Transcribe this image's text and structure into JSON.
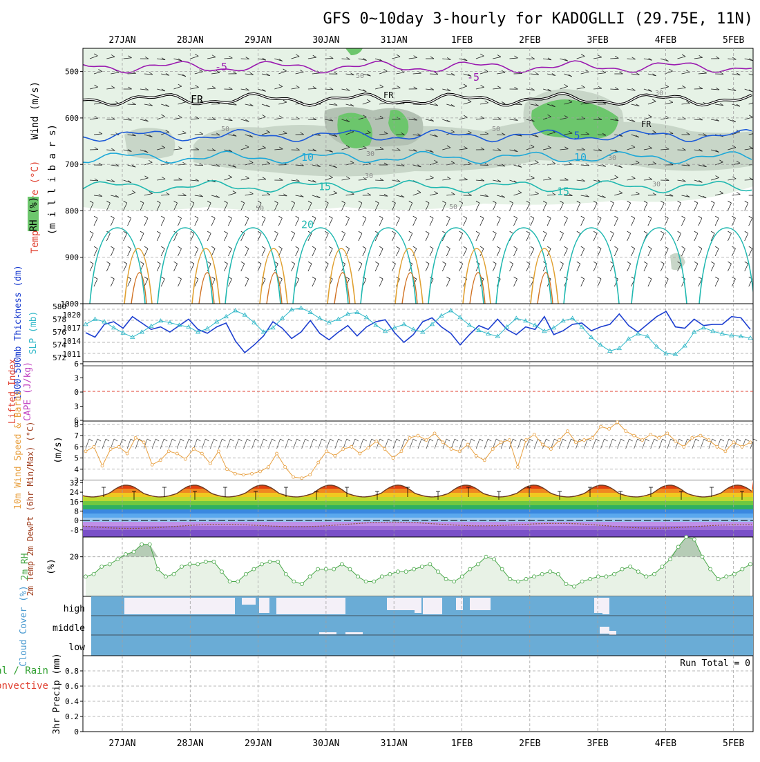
{
  "title": "GFS 0~10day 3-hourly for KADOGLLI (29.75E, 11N)",
  "dates": [
    "27JAN",
    "28JAN",
    "29JAN",
    "30JAN",
    "31JAN",
    "1FEB",
    "2FEB",
    "3FEB",
    "4FEB",
    "5FEB"
  ],
  "colors": {
    "rh_light": "#e6f2e6",
    "rh_mid": "#c8d6c8",
    "rh_dark": "#b4c2b4",
    "rh_green": "#6cc66c",
    "temp_purple": "#9a1ab0",
    "temp_blue": "#1c5ad8",
    "temp_cyan": "#1ca8d8",
    "temp_teal": "#20b8b0",
    "temp_orange": "#e0a030",
    "thickness": "#1c3ed0",
    "slp": "#30b8c8",
    "wind10m": "#e8a040",
    "rh2m": "#4aa84a",
    "cloud": "#6aacd6",
    "grid": "#a0a0a0"
  },
  "chart_data": [
    {
      "id": "panel_upper_air",
      "type": "heatmap",
      "ylabel_top": "Wind (m/s)",
      "ylabel_temp": "Temperature (°C)",
      "ylabel_units": "(m i l l i b a r s)",
      "legend_label": "RH (%)",
      "y_ticks": [
        500,
        600,
        700,
        800,
        900,
        1000
      ],
      "ylim": [
        450,
        1000
      ],
      "isotherms": [
        {
          "label": "-5",
          "value": -5,
          "level": 490
        },
        {
          "label": "FR",
          "value": 0,
          "level": 560
        },
        {
          "label": "5",
          "value": 5,
          "level": 638
        },
        {
          "label": "10",
          "value": 10,
          "level": 685
        },
        {
          "label": "15",
          "value": 15,
          "level": 748
        },
        {
          "label": "20",
          "value": 20,
          "level": 830
        }
      ],
      "rh_labels": [
        "50",
        "50",
        "50",
        "30",
        "30",
        "30",
        "50",
        "50",
        "30",
        "30"
      ]
    },
    {
      "id": "panel_thickness_slp",
      "type": "line",
      "ylabel_left": "1000-500mb Thickness (dm)",
      "ylabel_right": "SLP (mb)",
      "left_ticks": [
        "580",
        "578",
        "576",
        "574",
        "572"
      ],
      "right_ticks": [
        "1020",
        "1017",
        "1014",
        "1011"
      ],
      "left_ylim": [
        571,
        580
      ],
      "right_ylim": [
        1008.5,
        1022
      ],
      "thickness": [
        575.5,
        574.8,
        576.8,
        577.2,
        576.2,
        578.0,
        577.0,
        576.0,
        576.4,
        575.6,
        576.6,
        577.6,
        576.0,
        575.4,
        576.4,
        577.0,
        574.2,
        572.4,
        573.6,
        575.0,
        577.2,
        576.2,
        574.6,
        575.6,
        577.4,
        575.4,
        574.4,
        575.6,
        576.6,
        575.0,
        576.4,
        577.2,
        577.5,
        575.5,
        574.0,
        575.2,
        577.2,
        577.8,
        576.4,
        575.4,
        573.6,
        575.2,
        576.6,
        576.0,
        577.6,
        576.0,
        575.2,
        576.4,
        576.0,
        578.0,
        575.2,
        575.8,
        576.8,
        577.0,
        575.8,
        576.4,
        576.8,
        578.4,
        576.6,
        575.6,
        576.8,
        578.0,
        578.8,
        576.4,
        576.2,
        577.6,
        576.6,
        576.8,
        576.8,
        578.0,
        577.8,
        576.0
      ],
      "slp": [
        1017.2,
        1018.4,
        1017.8,
        1016.4,
        1015.2,
        1014.2,
        1015.4,
        1016.8,
        1018.0,
        1017.6,
        1017.0,
        1016.6,
        1015.4,
        1016.2,
        1017.8,
        1019.0,
        1020.4,
        1019.4,
        1017.6,
        1015.4,
        1016.4,
        1018.6,
        1020.6,
        1021.0,
        1020.0,
        1018.6,
        1017.6,
        1018.4,
        1019.6,
        1020.0,
        1018.8,
        1017.0,
        1015.6,
        1016.4,
        1017.2,
        1016.0,
        1015.4,
        1017.2,
        1019.2,
        1020.4,
        1018.8,
        1017.0,
        1015.8,
        1015.0,
        1014.4,
        1016.6,
        1018.6,
        1018.0,
        1017.0,
        1015.6,
        1016.4,
        1018.0,
        1018.6,
        1016.6,
        1014.2,
        1012.4,
        1011.0,
        1011.6,
        1013.8,
        1015.0,
        1014.4,
        1012.0,
        1010.4,
        1010.2,
        1012.2,
        1015.4,
        1016.4,
        1015.6,
        1015.0,
        1014.6,
        1014.4,
        1014.0
      ]
    },
    {
      "id": "panel_cape",
      "type": "line",
      "ylabel_left": "Lifted Index",
      "ylabel_right": "CAPE (J/kg)",
      "ticks": [
        "6",
        "3",
        "0",
        "3",
        "6"
      ]
    },
    {
      "id": "panel_wind10m",
      "type": "line",
      "ylabel": "10m Wind Speed & Barbs",
      "units": "(m/s)",
      "ticks": [
        "8",
        "7",
        "6",
        "5",
        "4",
        "3"
      ],
      "ylim": [
        3,
        8.3
      ],
      "values": [
        5.6,
        6.0,
        4.3,
        5.8,
        6.0,
        5.4,
        6.8,
        6.4,
        4.4,
        4.8,
        5.6,
        5.4,
        4.9,
        5.8,
        5.4,
        4.5,
        5.6,
        4.0,
        3.6,
        3.5,
        3.6,
        3.8,
        4.2,
        5.4,
        4.2,
        3.3,
        3.2,
        3.5,
        4.6,
        5.6,
        5.2,
        5.8,
        6.0,
        5.4,
        5.9,
        6.5,
        5.8,
        5.0,
        5.6,
        6.8,
        7.0,
        6.6,
        7.2,
        6.4,
        5.8,
        5.6,
        6.2,
        5.2,
        4.8,
        5.8,
        6.4,
        6.6,
        4.2,
        6.6,
        7.1,
        6.2,
        5.8,
        6.6,
        7.4,
        6.4,
        6.6,
        6.8,
        7.8,
        7.6,
        8.2,
        7.4,
        7.0,
        6.6,
        7.1,
        6.8,
        7.2,
        6.5,
        6.0,
        6.8,
        7.0,
        6.6,
        6.0,
        5.6,
        6.4,
        6.0,
        6.4
      ]
    },
    {
      "id": "panel_temp2m",
      "type": "area",
      "ylabel": "2m Temp 2m DewPt (6hr Min/Max) (°C)",
      "ticks": [
        "32",
        "24",
        "16",
        "8",
        "0",
        "-8"
      ],
      "ylim": [
        -14,
        34
      ]
    },
    {
      "id": "panel_rh2m",
      "type": "area",
      "ylabel": "2m RH",
      "units": "(%)",
      "ticks": [
        "20"
      ],
      "ylim": [
        4,
        28
      ],
      "values": [
        12,
        13,
        16,
        17,
        19,
        21,
        22,
        25,
        25,
        15,
        12,
        13,
        16,
        17,
        17,
        18,
        18,
        14,
        10,
        10,
        13,
        15,
        17,
        18,
        18,
        13,
        10,
        9,
        12,
        15,
        15,
        15,
        17,
        15,
        12,
        10,
        10,
        12,
        13,
        14,
        14,
        15,
        16,
        17,
        14,
        11,
        10,
        12,
        15,
        17,
        20,
        19,
        15,
        11,
        10,
        11,
        12,
        13,
        14,
        13,
        9,
        8,
        10,
        11,
        12,
        12,
        13,
        15,
        16,
        14,
        12,
        13,
        16,
        19,
        24,
        28,
        27,
        20,
        15,
        11,
        12,
        13,
        15,
        17
      ]
    },
    {
      "id": "panel_cloud",
      "type": "heatmap",
      "ylabel": "Cloud Cover (%)",
      "levels": [
        "high",
        "middle",
        "low"
      ]
    },
    {
      "id": "panel_precip",
      "type": "bar",
      "ylabel": "3hr Precip (mm)",
      "ylabel2": "tal / Rain",
      "ylabel3": "Convective",
      "ticks": [
        "0.8",
        "0.6",
        "0.4",
        "0.2",
        "0"
      ],
      "ylim": [
        0,
        1
      ],
      "run_total": "Run Total = 0"
    }
  ]
}
